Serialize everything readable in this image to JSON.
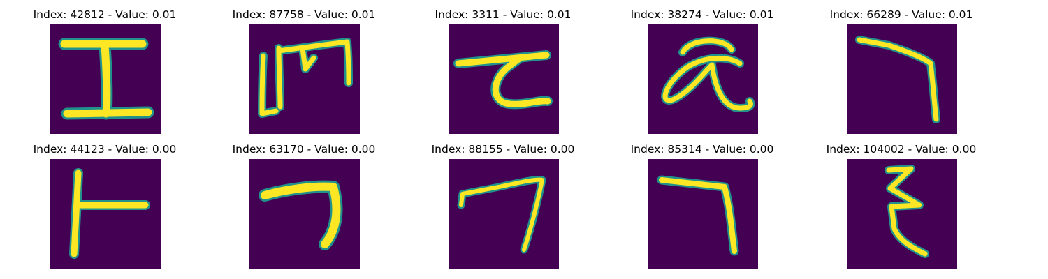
{
  "cells": [
    {
      "title": "Index: 42812 - Value: 0.01",
      "glyph": "I"
    },
    {
      "title": "Index: 87758 - Value: 0.01",
      "glyph": "m-bracket"
    },
    {
      "title": "Index: 3311 - Value: 0.01",
      "glyph": "z-curve"
    },
    {
      "title": "Index: 38274 - Value: 0.01",
      "glyph": "alpha"
    },
    {
      "title": "Index: 66289 - Value: 0.01",
      "glyph": "hook"
    },
    {
      "title": "Index: 44123 - Value: 0.00",
      "glyph": "t-side"
    },
    {
      "title": "Index: 63170 - Value: 0.00",
      "glyph": "bold-seven"
    },
    {
      "title": "Index: 88155 - Value: 0.00",
      "glyph": "seven"
    },
    {
      "title": "Index: 85314 - Value: 0.00",
      "glyph": "hook-2"
    },
    {
      "title": "Index: 104002 - Value: 0.00",
      "glyph": "epsilon"
    }
  ],
  "colors": {
    "background": "#440154",
    "stroke_core": "#fde725",
    "stroke_edge": "#21918c"
  }
}
